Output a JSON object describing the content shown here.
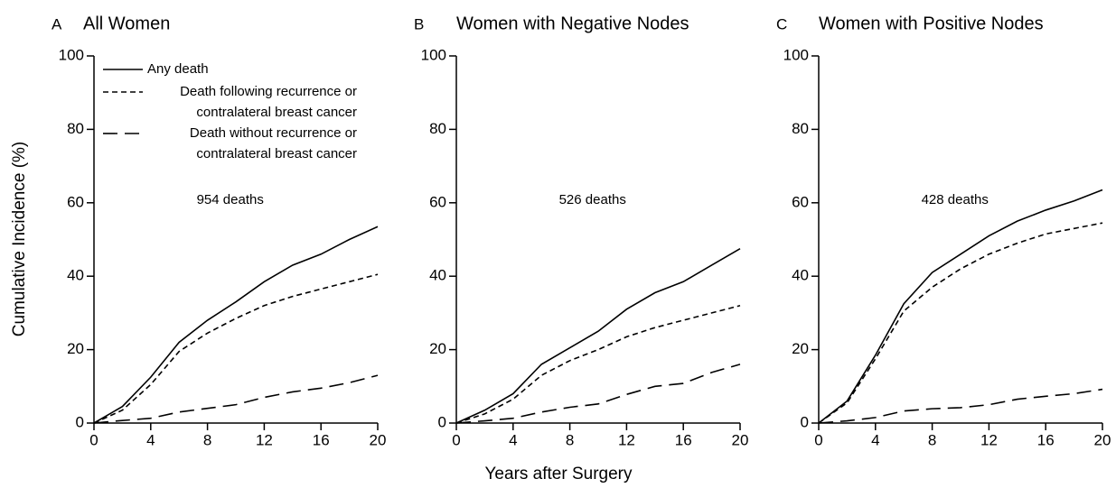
{
  "shared": {
    "x_label": "Years after Surgery",
    "y_label": "Cumulative Incidence (%)"
  },
  "chart_data": [
    {
      "type": "line",
      "panel_label": "A",
      "title": "All Women",
      "annotation": "954 deaths",
      "legend": true,
      "x": [
        0,
        2,
        4,
        6,
        8,
        10,
        12,
        14,
        16,
        18,
        20
      ],
      "xlim": [
        0,
        20
      ],
      "xticks": [
        0,
        4,
        8,
        12,
        16,
        20
      ],
      "ylim": [
        0,
        100
      ],
      "yticks": [
        0,
        20,
        40,
        60,
        80,
        100
      ],
      "series": [
        {
          "name": "Any death",
          "color": "#000000",
          "dash": "solid",
          "values": [
            0,
            4.5,
            12.5,
            22,
            28,
            33,
            38.5,
            43,
            46,
            50,
            53.5
          ]
        },
        {
          "name": "Death following recurrence or\ncontralateral breast cancer",
          "color": "#000000",
          "dash": "short",
          "values": [
            0,
            3.5,
            10.5,
            19.5,
            24.5,
            28.5,
            32,
            34.5,
            36.5,
            38.5,
            40.5
          ]
        },
        {
          "name": "Death without recurrence or\ncontralateral breast cancer",
          "color": "#000000",
          "dash": "long",
          "values": [
            0,
            0.7,
            1.3,
            3,
            4,
            5,
            7,
            8.5,
            9.5,
            11,
            13
          ]
        }
      ]
    },
    {
      "type": "line",
      "panel_label": "B",
      "title": "Women with Negative Nodes",
      "annotation": "526 deaths",
      "legend": false,
      "x": [
        0,
        2,
        4,
        6,
        8,
        10,
        12,
        14,
        16,
        18,
        20
      ],
      "xlim": [
        0,
        20
      ],
      "xticks": [
        0,
        4,
        8,
        12,
        16,
        20
      ],
      "ylim": [
        0,
        100
      ],
      "yticks": [
        0,
        20,
        40,
        60,
        80,
        100
      ],
      "series": [
        {
          "color": "#000000",
          "dash": "solid",
          "values": [
            0,
            3.5,
            8,
            16,
            20.5,
            25,
            31,
            35.5,
            38.5,
            43,
            47.5
          ]
        },
        {
          "color": "#000000",
          "dash": "short",
          "values": [
            0,
            2.5,
            6.5,
            13,
            17,
            20,
            23.5,
            26,
            28,
            30,
            32
          ]
        },
        {
          "color": "#000000",
          "dash": "long",
          "values": [
            0,
            0.6,
            1.3,
            3,
            4.3,
            5.2,
            7.8,
            10,
            10.8,
            13.8,
            16
          ]
        }
      ]
    },
    {
      "type": "line",
      "panel_label": "C",
      "title": "Women with Positive Nodes",
      "annotation": "428 deaths",
      "legend": false,
      "x": [
        0,
        2,
        4,
        6,
        8,
        10,
        12,
        14,
        16,
        18,
        20
      ],
      "xlim": [
        0,
        20
      ],
      "xticks": [
        0,
        4,
        8,
        12,
        16,
        20
      ],
      "ylim": [
        0,
        100
      ],
      "yticks": [
        0,
        20,
        40,
        60,
        80,
        100
      ],
      "series": [
        {
          "color": "#000000",
          "dash": "solid",
          "values": [
            0,
            6,
            18.5,
            32.5,
            41,
            46,
            51,
            55,
            58,
            60.5,
            63.5
          ]
        },
        {
          "color": "#000000",
          "dash": "short",
          "values": [
            0,
            5.5,
            17.5,
            30.5,
            37,
            42,
            46,
            49,
            51.5,
            53,
            54.5
          ]
        },
        {
          "color": "#000000",
          "dash": "long",
          "values": [
            0,
            0.6,
            1.5,
            3.3,
            3.9,
            4.2,
            5,
            6.5,
            7.3,
            8,
            9.2
          ]
        }
      ]
    }
  ]
}
